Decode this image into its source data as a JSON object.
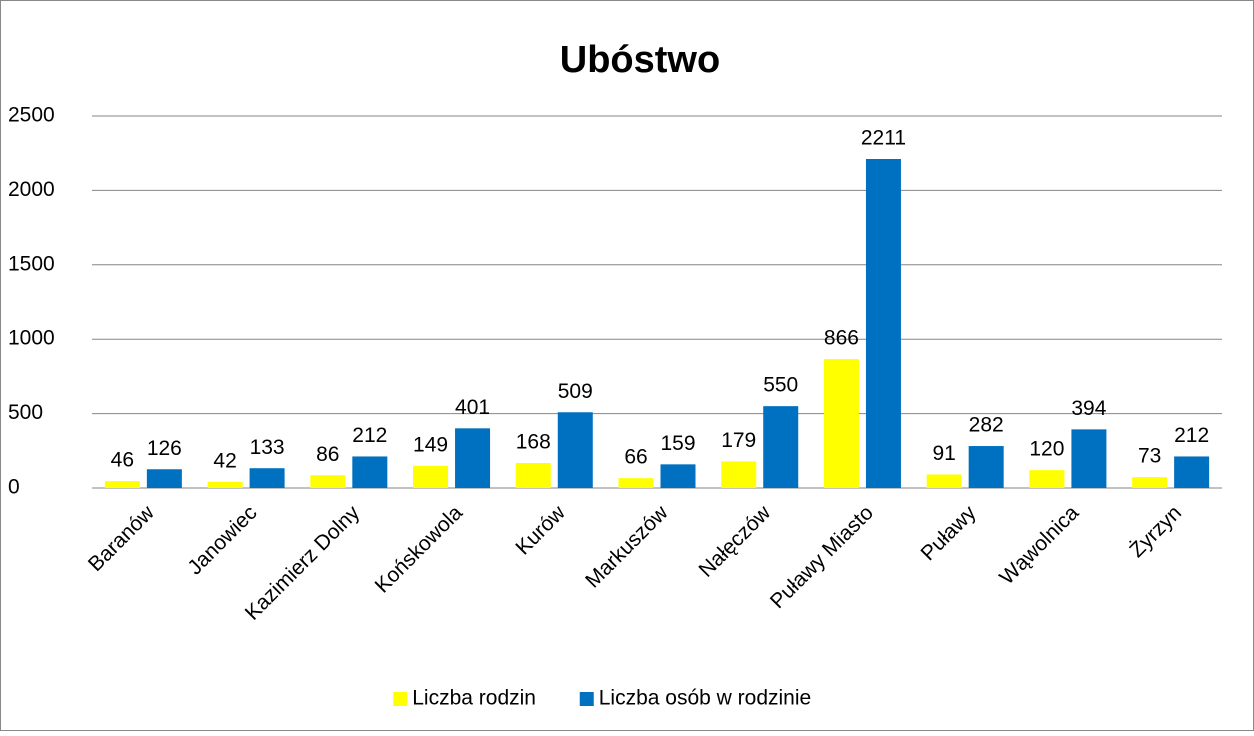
{
  "chart_data": {
    "type": "bar",
    "title": "Ubóstwo",
    "categories": [
      "Baranów",
      "Janowiec",
      "Kazimierz Dolny",
      "Końskowola",
      "Kurów",
      "Markuszów",
      "Nałęczów",
      "Puławy Miasto",
      "Puławy",
      "Wąwolnica",
      "Żyrzyn"
    ],
    "series": [
      {
        "name": "Liczba rodzin",
        "color": "#ffff00",
        "values": [
          46,
          42,
          86,
          149,
          168,
          66,
          179,
          866,
          91,
          120,
          73
        ]
      },
      {
        "name": "Liczba osób w rodzinie",
        "color": "#0070c0",
        "values": [
          126,
          133,
          212,
          401,
          509,
          159,
          550,
          2211,
          282,
          394,
          212
        ]
      }
    ],
    "ylim": [
      0,
      2500
    ],
    "yticks": [
      0,
      500,
      1000,
      1500,
      2000,
      2500
    ],
    "grid": true,
    "legend": "bottom",
    "data_labels": true
  }
}
